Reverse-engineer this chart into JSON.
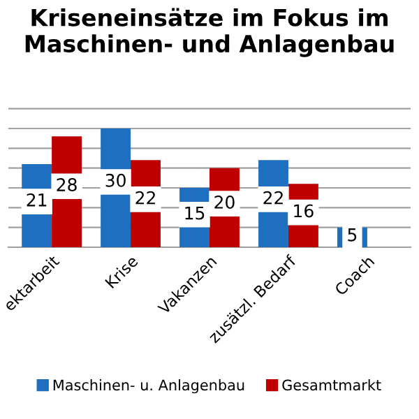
{
  "chart_data": {
    "type": "bar",
    "title": "Kriseneinsätze im Fokus im\nMaschinen- und Anlagenbau",
    "categories": [
      "ektarbeit",
      "Krise",
      "Vakanzen",
      "zusätzl. Bedarf",
      "Coach"
    ],
    "series": [
      {
        "name": "Maschinen- u. Anlagenbau",
        "color": "#1f6fc0",
        "values": [
          21,
          30,
          15,
          22,
          5
        ]
      },
      {
        "name": "Gesamtmarkt",
        "color": "#c00000",
        "values": [
          28,
          22,
          20,
          16,
          null
        ]
      }
    ],
    "ylim": [
      0,
      36
    ],
    "yticks": [
      {
        "value": 0,
        "label": null
      },
      {
        "value": 5,
        "label": null
      },
      {
        "value": 10,
        "label": null
      },
      {
        "value": 15,
        "label": null
      },
      {
        "value": 20,
        "label": null
      },
      {
        "value": 25,
        "label": null
      },
      {
        "value": 30,
        "label": null
      },
      {
        "value": 35,
        "label": null
      }
    ],
    "tick_labels": "x",
    "grid": "y",
    "legend": "bottom",
    "data_labels": true
  }
}
